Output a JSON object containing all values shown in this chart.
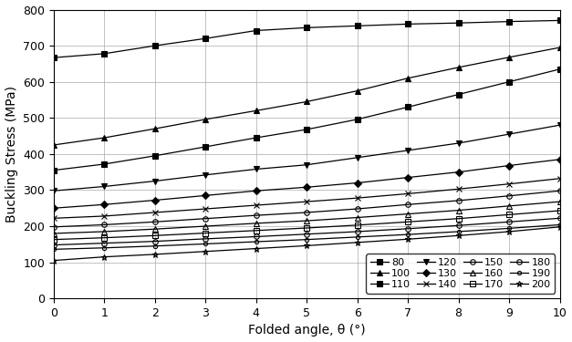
{
  "xlabel": "Folded angle, θ (°)",
  "ylabel": "Buckling Stress (MPa)",
  "xlim": [
    0,
    10
  ],
  "ylim": [
    0,
    800
  ],
  "series": [
    {
      "label": "80",
      "marker": "s",
      "mfc": "black",
      "ms": 4,
      "y": [
        667,
        678,
        700,
        720,
        742,
        750,
        755,
        760,
        763,
        767,
        770
      ]
    },
    {
      "label": "100",
      "marker": "^",
      "mfc": "black",
      "ms": 4,
      "y": [
        425,
        445,
        470,
        496,
        520,
        545,
        575,
        610,
        640,
        668,
        695
      ]
    },
    {
      "label": "110",
      "marker": "s",
      "mfc": "black",
      "ms": 4,
      "y": [
        355,
        372,
        395,
        420,
        445,
        468,
        496,
        530,
        565,
        600,
        635
      ]
    },
    {
      "label": "120",
      "marker": "v",
      "mfc": "black",
      "ms": 4,
      "y": [
        298,
        310,
        325,
        342,
        358,
        370,
        390,
        410,
        430,
        455,
        480
      ]
    },
    {
      "label": "130",
      "marker": "D",
      "mfc": "black",
      "ms": 4,
      "y": [
        250,
        260,
        272,
        285,
        298,
        308,
        320,
        335,
        350,
        368,
        385
      ]
    },
    {
      "label": "140",
      "marker": "x",
      "mfc": "black",
      "ms": 5,
      "y": [
        222,
        228,
        238,
        248,
        258,
        268,
        278,
        290,
        303,
        317,
        332
      ]
    },
    {
      "label": "150",
      "marker": "o",
      "mfc": "none",
      "ms": 4,
      "y": [
        198,
        204,
        212,
        221,
        230,
        238,
        248,
        260,
        271,
        284,
        298
      ]
    },
    {
      "label": "160",
      "marker": "^",
      "mfc": "none",
      "ms": 4,
      "y": [
        180,
        185,
        192,
        200,
        208,
        215,
        224,
        234,
        244,
        256,
        268
      ]
    },
    {
      "label": "170",
      "marker": "s",
      "mfc": "none",
      "ms": 4,
      "y": [
        163,
        168,
        174,
        181,
        188,
        195,
        203,
        212,
        221,
        232,
        243
      ]
    },
    {
      "label": "180",
      "marker": "o",
      "mfc": "none",
      "ms": 4,
      "y": [
        148,
        153,
        158,
        165,
        171,
        178,
        185,
        193,
        202,
        212,
        222
      ]
    },
    {
      "label": "190",
      "marker": "o",
      "mfc": "none",
      "ms": 3,
      "y": [
        136,
        140,
        145,
        151,
        157,
        163,
        170,
        177,
        185,
        194,
        204
      ]
    },
    {
      "label": "200",
      "marker": "*",
      "mfc": "none",
      "ms": 5,
      "y": [
        105,
        115,
        122,
        130,
        138,
        146,
        155,
        164,
        174,
        185,
        198
      ]
    }
  ]
}
